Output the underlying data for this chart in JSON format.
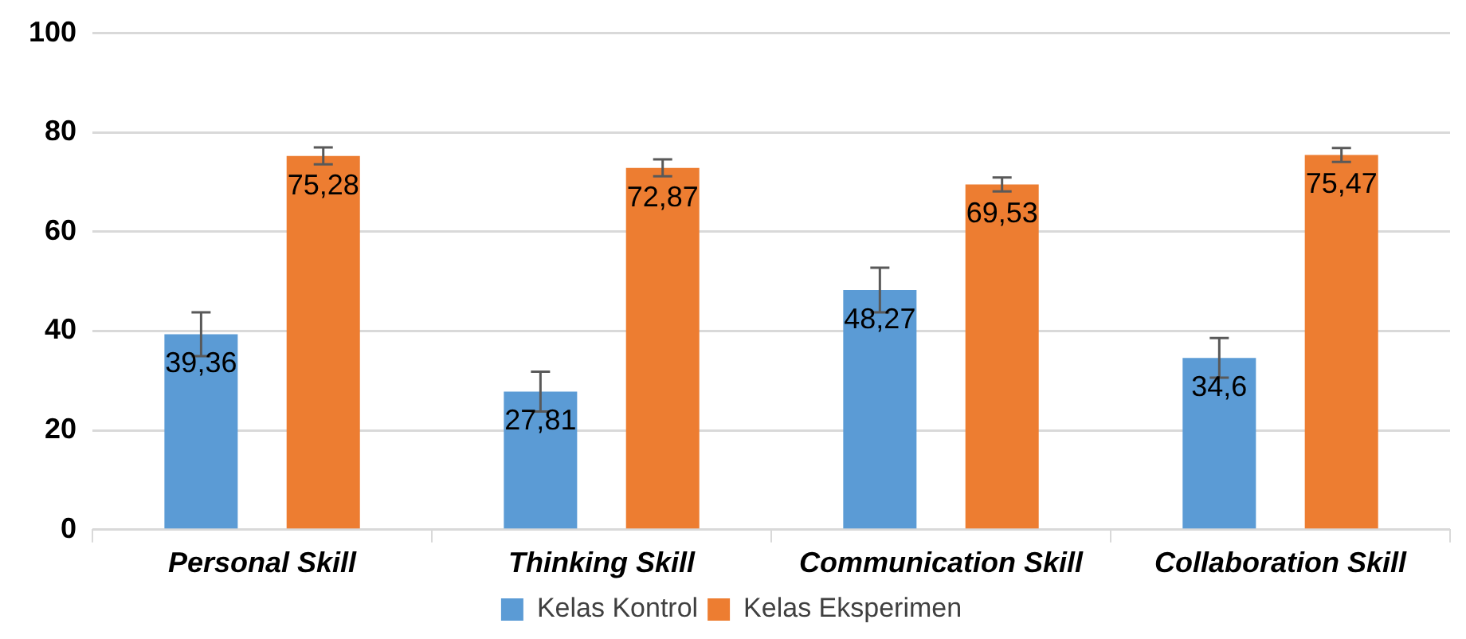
{
  "chart_data": {
    "type": "bar",
    "categories": [
      "Personal Skill",
      "Thinking Skill",
      "Communication Skill",
      "Collaboration Skill"
    ],
    "series": [
      {
        "name": "Kelas Kontrol",
        "color": "#5b9bd5",
        "values": [
          39.36,
          27.81,
          48.27,
          34.6
        ],
        "errors": [
          4.4,
          4,
          4.5,
          4
        ],
        "value_labels": [
          "39,36",
          "27,81",
          "48,27",
          "34,6"
        ]
      },
      {
        "name": "Kelas Eksperimen",
        "color": "#ed7d31",
        "values": [
          75.28,
          72.87,
          69.53,
          75.47
        ],
        "errors": [
          1.7,
          1.7,
          1.4,
          1.4
        ],
        "value_labels": [
          "75,28",
          "72,87",
          "69,53",
          "75,47"
        ]
      }
    ],
    "ylim": [
      0,
      100
    ],
    "yticks": [
      0,
      20,
      40,
      60,
      80,
      100
    ],
    "grid": "y",
    "legend": "bottom"
  }
}
